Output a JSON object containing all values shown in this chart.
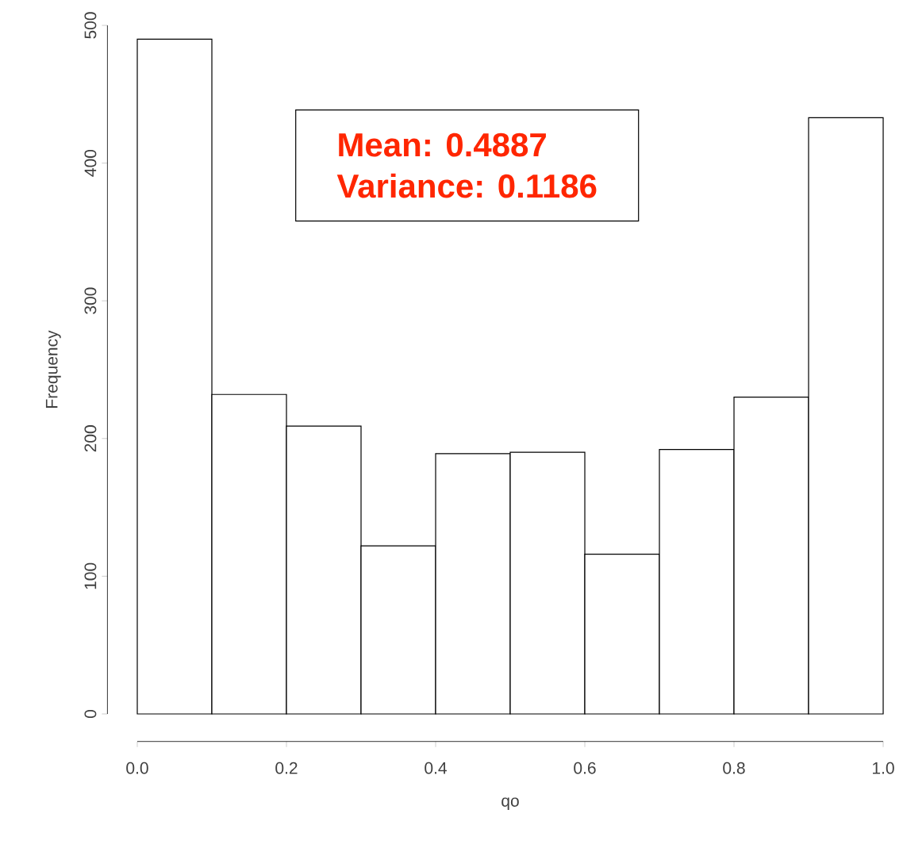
{
  "chart_data": {
    "type": "histogram",
    "xlabel": "qo",
    "ylabel": "Frequency",
    "bins": [
      0.0,
      0.1,
      0.2,
      0.3,
      0.4,
      0.5,
      0.6,
      0.7,
      0.8,
      0.9,
      1.0
    ],
    "values": [
      490,
      232,
      209,
      122,
      189,
      190,
      116,
      192,
      230,
      433
    ],
    "color": "#ffffff",
    "xlim": [
      0,
      1
    ],
    "xticks": [
      {
        "value": 0,
        "label": "0.0"
      },
      {
        "value": 0.2,
        "label": "0.2"
      },
      {
        "value": 0.4,
        "label": "0.4"
      },
      {
        "value": 0.6,
        "label": "0.6"
      },
      {
        "value": 0.8,
        "label": "0.8"
      },
      {
        "value": 1,
        "label": "1.0"
      }
    ],
    "ylim": [
      0,
      500
    ],
    "yticks": [
      0,
      100,
      200,
      300,
      400,
      500
    ],
    "annotations": [
      "Mean: 0.4887",
      "Variance: 0.1186"
    ]
  }
}
